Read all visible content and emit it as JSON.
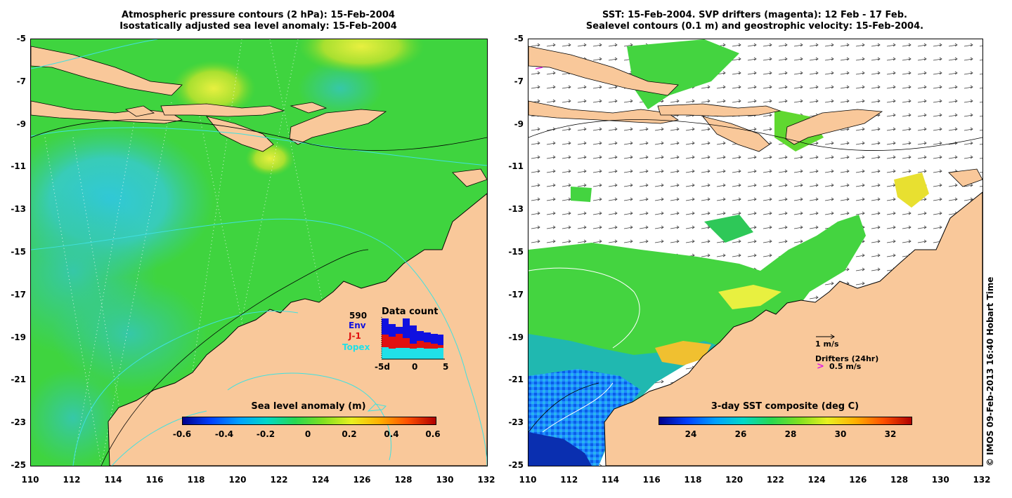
{
  "left_panel": {
    "title_line1": "Atmospheric pressure contours (2 hPa): 15-Feb-2004",
    "title_line2": "Isostatically adjusted sea level anomaly: 15-Feb-2004",
    "colorbar": {
      "label": "Sea level anomaly (m)",
      "ticks": [
        "-0.6",
        "-0.4",
        "-0.2",
        "0",
        "0.2",
        "0.4",
        "0.6"
      ]
    },
    "data_count": {
      "title": "Data count",
      "max": "590",
      "series": [
        {
          "name": "Env",
          "color": "#1010e0"
        },
        {
          "name": "J-1",
          "color": "#e01010"
        },
        {
          "name": "Topex",
          "color": "#20e0e8"
        }
      ],
      "x_ticks": [
        "-5d",
        "0",
        "5"
      ]
    }
  },
  "right_panel": {
    "title_line1": "SST: 15-Feb-2004. SVP drifters (magenta): 12 Feb - 17 Feb.",
    "title_line2": "Sealevel contours (0.1 m) and geostrophic velocity: 15-Feb-2004.",
    "colorbar": {
      "label": "3-day SST composite (deg C)",
      "ticks": [
        "24",
        "26",
        "28",
        "30",
        "32"
      ]
    },
    "velocity_scale": "1 m/s",
    "drifters_label": "Drifters (24hr)",
    "drifters_speed": "0.5 m/s",
    "drifter_symbol": ">"
  },
  "axes": {
    "y_ticks": [
      "-5",
      "-7",
      "-9",
      "-11",
      "-13",
      "-15",
      "-17",
      "-19",
      "-21",
      "-23",
      "-25"
    ],
    "x_ticks": [
      "110",
      "112",
      "114",
      "116",
      "118",
      "120",
      "122",
      "124",
      "126",
      "128",
      "130",
      "132"
    ]
  },
  "credit": "© IMOS 09-Feb-2013 16:40 Hobart Time",
  "colors": {
    "land": "#f9c89a",
    "ocean_green": "#3cd23c",
    "ocean_cyan": "#3cc8b4",
    "contour_cyan": "#40e0e0"
  }
}
